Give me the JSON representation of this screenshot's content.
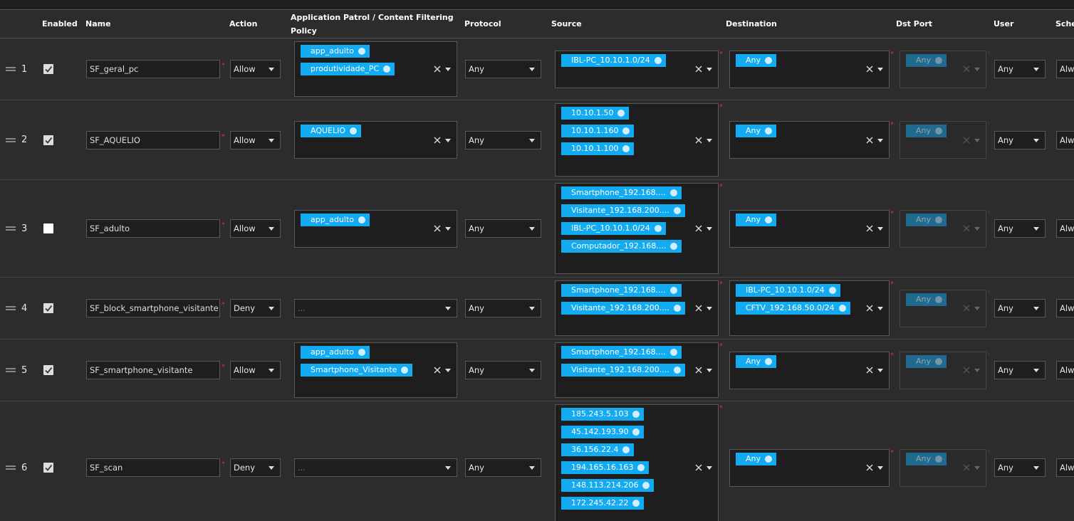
{
  "columns": [
    "Enabled",
    "Name",
    "Action",
    "Application Patrol / Content Filtering Policy",
    "Protocol",
    "Source",
    "Destination",
    "Dst Port",
    "User",
    "Sche"
  ],
  "required_mark": "*",
  "app_placeholder": "...",
  "rows": [
    {
      "index": "1",
      "enabled": true,
      "name": "SF_geral_pc",
      "action": "Allow",
      "app_policies": [
        "app_adulto",
        "produtividade_PC"
      ],
      "protocol": "Any",
      "source": [
        "IBL-PC_10.10.1.0/24"
      ],
      "destination": [
        "Any"
      ],
      "dst_port": [
        "Any"
      ],
      "user": "Any",
      "schedule": "Alw"
    },
    {
      "index": "2",
      "enabled": true,
      "name": "SF_AQUELIO",
      "action": "Allow",
      "app_policies": [
        "AQUELIO"
      ],
      "protocol": "Any",
      "source": [
        "10.10.1.50",
        "10.10.1.160",
        "10.10.1.100"
      ],
      "destination": [
        "Any"
      ],
      "dst_port": [
        "Any"
      ],
      "user": "Any",
      "schedule": "Alw"
    },
    {
      "index": "3",
      "enabled": false,
      "name": "SF_adulto",
      "action": "Allow",
      "app_policies": [
        "app_adulto"
      ],
      "protocol": "Any",
      "source": [
        "Smartphone_192.168....",
        "Visitante_192.168.200....",
        "IBL-PC_10.10.1.0/24",
        "Computador_192.168...."
      ],
      "destination": [
        "Any"
      ],
      "dst_port": [
        "Any"
      ],
      "user": "Any",
      "schedule": "Alw"
    },
    {
      "index": "4",
      "enabled": true,
      "name": "SF_block_smartphone_visitante",
      "action": "Deny",
      "app_policies": [],
      "protocol": "Any",
      "source": [
        "Smartphone_192.168....",
        "Visitante_192.168.200...."
      ],
      "destination": [
        "IBL-PC_10.10.1.0/24",
        "CFTV_192.168.50.0/24"
      ],
      "dst_port": [
        "Any"
      ],
      "user": "Any",
      "schedule": "Alw"
    },
    {
      "index": "5",
      "enabled": true,
      "name": "SF_smartphone_visitante",
      "action": "Allow",
      "app_policies": [
        "app_adulto",
        "Smartphone_Visitante"
      ],
      "protocol": "Any",
      "source": [
        "Smartphone_192.168....",
        "Visitante_192.168.200...."
      ],
      "destination": [
        "Any"
      ],
      "dst_port": [
        "Any"
      ],
      "user": "Any",
      "schedule": "Alw"
    },
    {
      "index": "6",
      "enabled": true,
      "name": "SF_scan",
      "action": "Deny",
      "app_policies": [],
      "protocol": "Any",
      "source": [
        "185.243.5.103",
        "45.142.193.90",
        "36.156.22.4",
        "194.165.16.163",
        "148.113.214.206",
        "172.245.42.22"
      ],
      "destination": [
        "Any"
      ],
      "dst_port": [
        "Any"
      ],
      "user": "Any",
      "schedule": "Alw"
    }
  ]
}
